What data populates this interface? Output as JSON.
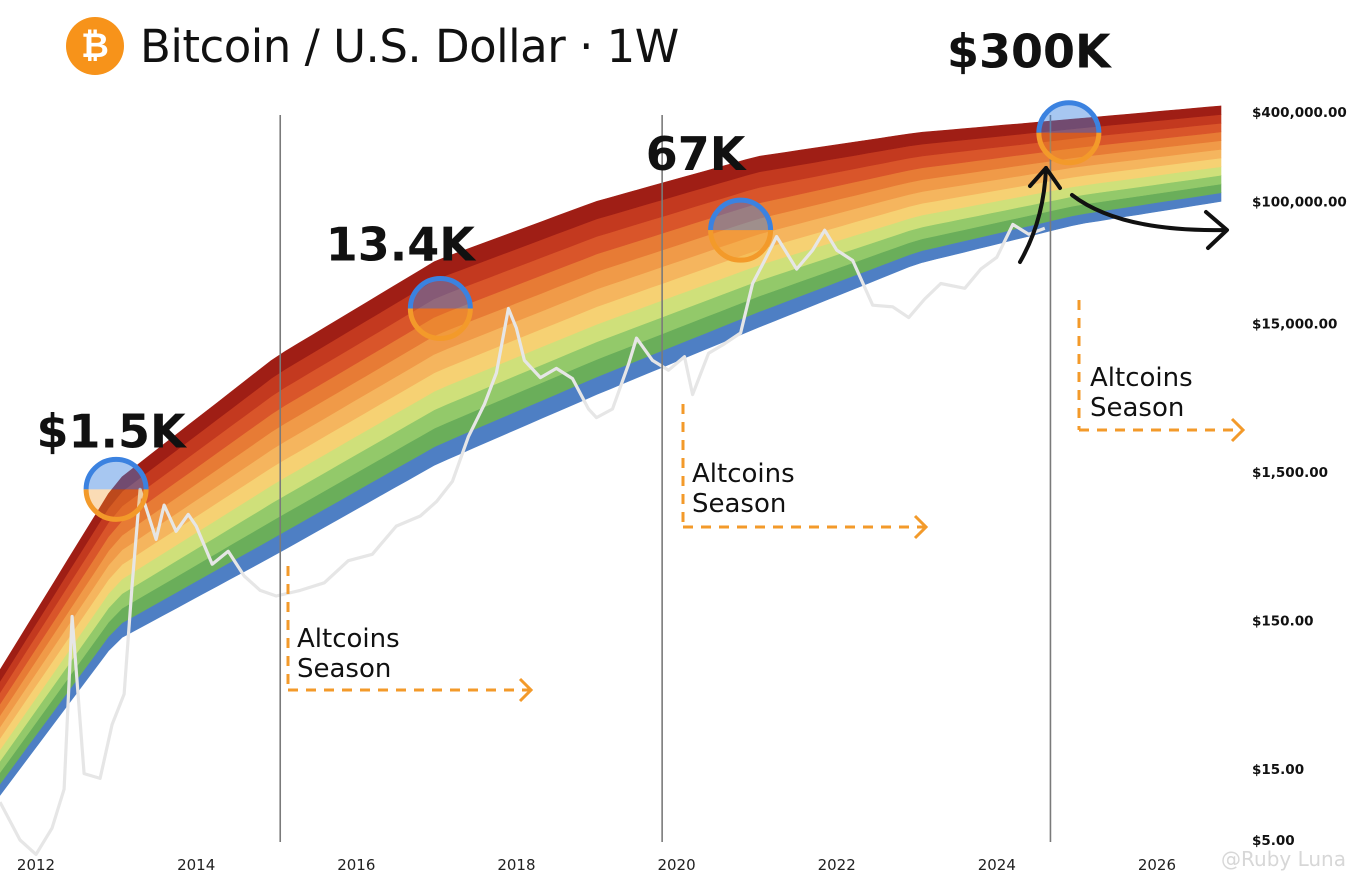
{
  "header": {
    "logo_icon": "bitcoin-icon",
    "logo_glyph": "₿",
    "title": "Bitcoin / U.S. Dollar · 1W"
  },
  "watermark": "@Ruby Luna",
  "colors": {
    "logo": "#F7931A",
    "orange_accent": "#F39A2A",
    "circle_blue": "#3B82E0",
    "price_line": "#e6e6e6",
    "rainbow_bands": [
      "#4E7FC4",
      "#6AAE5A",
      "#93C96A",
      "#CFE07A",
      "#F6D173",
      "#F5B55E",
      "#F09A48",
      "#E77B35",
      "#D9552A",
      "#C3391F",
      "#9F1E15"
    ]
  },
  "chart_data": {
    "type": "line",
    "title": "Bitcoin / U.S. Dollar · 1W",
    "scale": "log",
    "xlim": [
      2011.55,
      2027.1
    ],
    "ylim": [
      5,
      400000
    ],
    "x_ticks": [
      2012,
      2014,
      2016,
      2018,
      2020,
      2022,
      2024,
      2026
    ],
    "x_tick_labels": [
      "2012",
      "2014",
      "2016",
      "2018",
      "2020",
      "2022",
      "2024",
      "2026"
    ],
    "y_ticks": [
      5,
      15,
      150,
      1500,
      15000,
      100000,
      400000
    ],
    "y_tick_labels": [
      "$5.00",
      "$15.00",
      "$150.00",
      "$1,500.00",
      "$15,000.00",
      "$100,000.00",
      "$400,000.00"
    ],
    "halving_lines": [
      2015.05,
      2019.82,
      2024.67
    ],
    "rainbow": {
      "bands": 11,
      "lower_edge": {
        "x": [
          2011.55,
          2013,
          2015,
          2017,
          2019,
          2021,
          2023,
          2025,
          2026.8
        ],
        "y": [
          10,
          110,
          420,
          1700,
          5000,
          14000,
          38000,
          70000,
          100000
        ]
      },
      "upper_edge": {
        "x": [
          2011.55,
          2013,
          2015,
          2017,
          2019,
          2021,
          2023,
          2025,
          2026.8
        ],
        "y": [
          70,
          1300,
          9000,
          40000,
          100000,
          200000,
          290000,
          360000,
          440000
        ]
      }
    },
    "series": [
      {
        "name": "BTC weekly price",
        "x": [
          2011.55,
          2011.8,
          2012.0,
          2012.2,
          2012.35,
          2012.45,
          2012.6,
          2012.8,
          2012.95,
          2013.1,
          2013.2,
          2013.3,
          2013.5,
          2013.6,
          2013.75,
          2013.9,
          2014.0,
          2014.2,
          2014.4,
          2014.6,
          2014.8,
          2015.0,
          2015.3,
          2015.6,
          2015.9,
          2016.2,
          2016.5,
          2016.8,
          2017.0,
          2017.2,
          2017.4,
          2017.6,
          2017.75,
          2017.9,
          2018.0,
          2018.1,
          2018.3,
          2018.5,
          2018.7,
          2018.9,
          2019.0,
          2019.2,
          2019.4,
          2019.5,
          2019.7,
          2019.9,
          2020.1,
          2020.2,
          2020.4,
          2020.6,
          2020.8,
          2020.95,
          2021.1,
          2021.25,
          2021.5,
          2021.7,
          2021.85,
          2022.0,
          2022.2,
          2022.45,
          2022.7,
          2022.9,
          2023.1,
          2023.3,
          2023.6,
          2023.8,
          2024.0,
          2024.2,
          2024.4,
          2024.6
        ],
        "y": [
          9,
          5,
          4,
          6,
          11,
          160,
          14,
          13,
          30,
          48,
          260,
          1150,
          530,
          900,
          600,
          780,
          650,
          360,
          440,
          300,
          240,
          220,
          240,
          270,
          380,
          420,
          650,
          760,
          950,
          1300,
          2600,
          4300,
          7000,
          19000,
          14000,
          8500,
          6500,
          7500,
          6400,
          4000,
          3500,
          4000,
          8000,
          12000,
          8500,
          7300,
          9000,
          5000,
          9500,
          11000,
          13000,
          28000,
          40000,
          58000,
          35000,
          47000,
          64000,
          47000,
          40000,
          20000,
          19500,
          16500,
          22000,
          28000,
          26000,
          35000,
          42000,
          70000,
          60000,
          66000
        ]
      }
    ],
    "annotations": {
      "peak_labels": [
        "$1.5K",
        "13.4K",
        "67K",
        "$300K"
      ],
      "peak_points": [
        {
          "label": "$1.5K",
          "x": 2013.0,
          "y": 1150
        },
        {
          "label": "13.4K",
          "x": 2017.05,
          "y": 19000
        },
        {
          "label": "67K",
          "x": 2020.8,
          "y": 64000
        },
        {
          "label": "$300K",
          "x": 2024.9,
          "y": 290000
        }
      ],
      "seasons": [
        {
          "line1": "Altcoins",
          "line2": "Season"
        },
        {
          "line1": "Altcoins",
          "line2": "Season"
        },
        {
          "line1": "Altcoins",
          "line2": "Season"
        }
      ]
    }
  }
}
